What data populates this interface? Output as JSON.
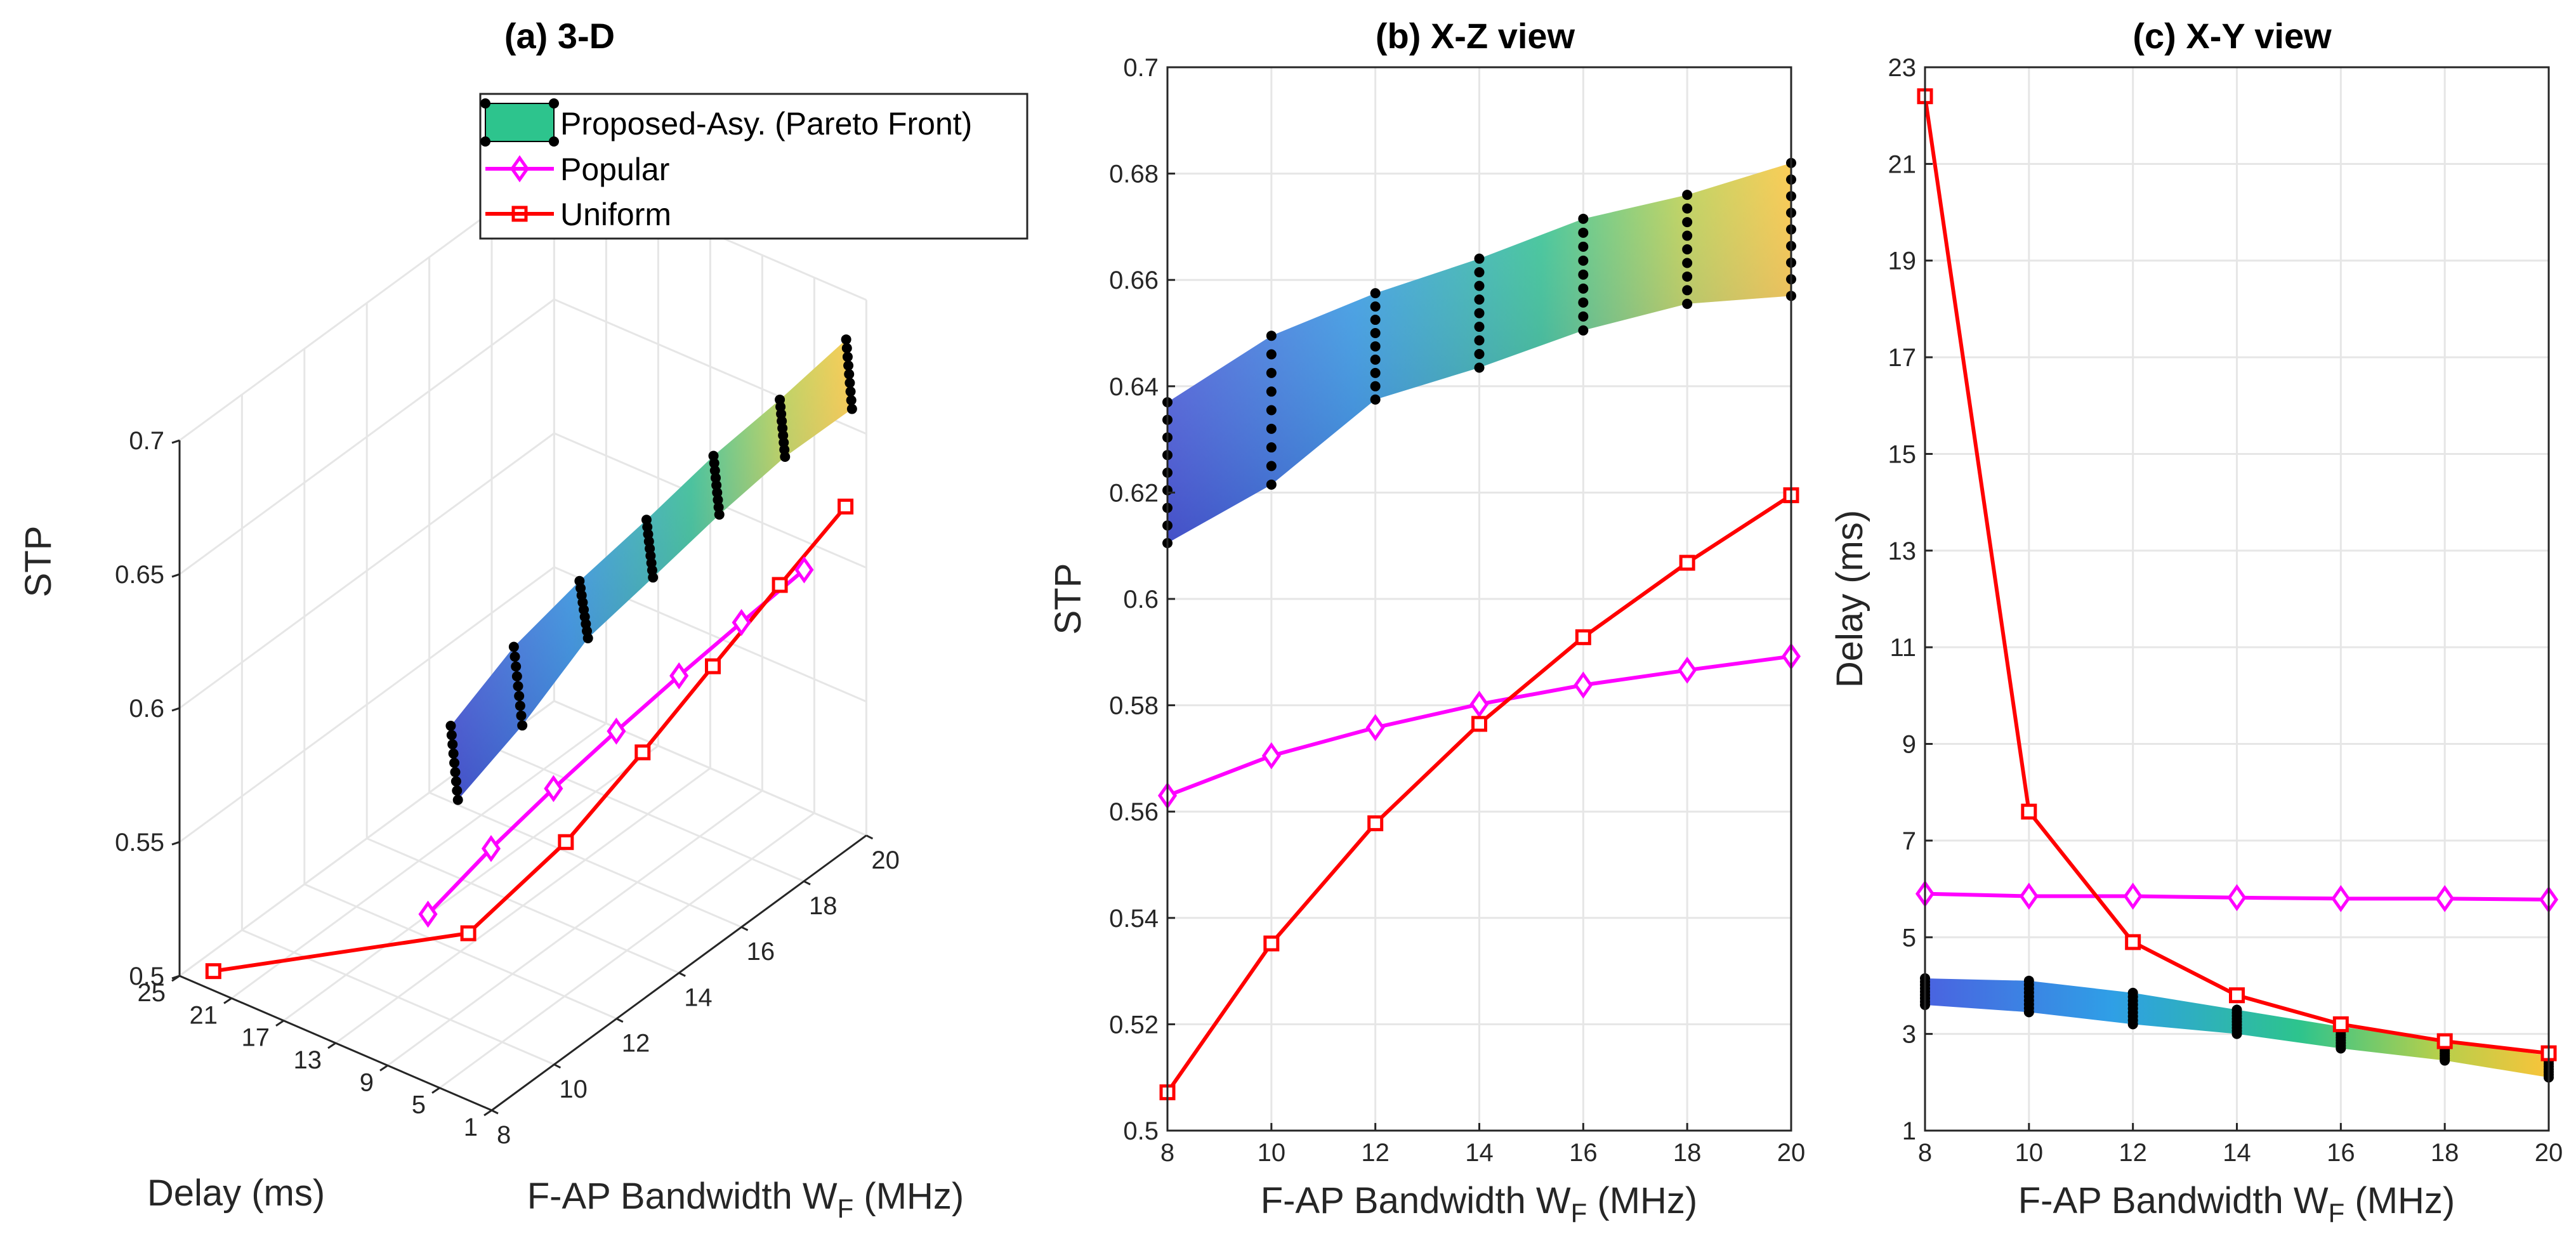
{
  "chart_data": [
    {
      "id": "a",
      "type": "line",
      "title": "(a) 3-D",
      "xlabel": "F-AP Bandwidth W",
      "xlabel_sub": "F",
      "xlabel_unit": " (MHz)",
      "ylabel": "Delay (ms)",
      "zlabel": "STP",
      "xticks": [
        8,
        10,
        12,
        14,
        16,
        18,
        20
      ],
      "xticklabels": [
        "8",
        "10",
        "12",
        "14",
        "16",
        "18",
        "20"
      ],
      "yticks": [
        1,
        5,
        9,
        13,
        17,
        21,
        25
      ],
      "yticklabels": [
        "1",
        "5",
        "9",
        "13",
        "17",
        "21",
        "25"
      ],
      "zticks": [
        0.5,
        0.55,
        0.6,
        0.65,
        0.7
      ],
      "zticklabels": [
        "0.5",
        "0.55",
        "0.6",
        "0.65",
        "0.7"
      ],
      "legend": {
        "position": "top-right",
        "entries": [
          "Proposed-Asy. (Pareto Front)",
          "Popular",
          "Uniform"
        ]
      }
    },
    {
      "id": "b",
      "type": "line",
      "title": "(b) X-Z view",
      "xlabel": "F-AP Bandwidth W",
      "xlabel_sub": "F",
      "xlabel_unit": " (MHz)",
      "ylabel": "STP",
      "xlim": [
        8,
        20
      ],
      "ylim": [
        0.5,
        0.7
      ],
      "xticks": [
        8,
        10,
        12,
        14,
        16,
        18,
        20
      ],
      "xticklabels": [
        "8",
        "10",
        "12",
        "14",
        "16",
        "18",
        "20"
      ],
      "yticks": [
        0.5,
        0.52,
        0.54,
        0.56,
        0.58,
        0.6,
        0.62,
        0.64,
        0.66,
        0.68,
        0.7
      ],
      "yticklabels": [
        "0.5",
        "0.52",
        "0.54",
        "0.56",
        "0.58",
        "0.6",
        "0.62",
        "0.64",
        "0.66",
        "0.68",
        "0.7"
      ],
      "grid": true
    },
    {
      "id": "c",
      "type": "line",
      "title": "(c) X-Y view",
      "xlabel": "F-AP Bandwidth W",
      "xlabel_sub": "F",
      "xlabel_unit": " (MHz)",
      "ylabel": "Delay (ms)",
      "xlim": [
        8,
        20
      ],
      "ylim": [
        1,
        23
      ],
      "xticks": [
        8,
        10,
        12,
        14,
        16,
        18,
        20
      ],
      "xticklabels": [
        "8",
        "10",
        "12",
        "14",
        "16",
        "18",
        "20"
      ],
      "yticks": [
        1,
        3,
        5,
        7,
        9,
        11,
        13,
        15,
        17,
        19,
        21,
        23
      ],
      "yticklabels": [
        "1",
        "3",
        "5",
        "7",
        "9",
        "11",
        "13",
        "15",
        "17",
        "19",
        "21",
        "23"
      ],
      "grid": true
    }
  ],
  "series": {
    "x": [
      8,
      10,
      12,
      14,
      16,
      18,
      20
    ],
    "popular": {
      "name": "Popular",
      "color": "#ff00ff",
      "stp": [
        0.563,
        0.5705,
        0.5758,
        0.5802,
        0.5838,
        0.5866,
        0.5892
      ],
      "delay": [
        5.9,
        5.85,
        5.85,
        5.82,
        5.8,
        5.8,
        5.78
      ]
    },
    "uniform": {
      "name": "Uniform",
      "color": "#ff0000",
      "stp": [
        0.5072,
        0.5352,
        0.5578,
        0.5765,
        0.5928,
        0.6068,
        0.6195
      ],
      "delay": [
        22.4,
        7.6,
        4.9,
        3.8,
        3.2,
        2.85,
        2.6
      ]
    },
    "pareto": {
      "name": "Proposed-Asy. (Pareto Front)",
      "color": "#2dc48d",
      "stp_upper": [
        0.637,
        0.6495,
        0.6575,
        0.664,
        0.6715,
        0.676,
        0.682
      ],
      "stp_lower": [
        0.6105,
        0.6215,
        0.6375,
        0.6435,
        0.6505,
        0.6555,
        0.657
      ],
      "delay_upper": [
        4.15,
        4.1,
        3.85,
        3.5,
        3.15,
        2.85,
        2.55
      ],
      "delay_lower": [
        3.6,
        3.45,
        3.2,
        3.0,
        2.7,
        2.45,
        2.1
      ]
    }
  }
}
